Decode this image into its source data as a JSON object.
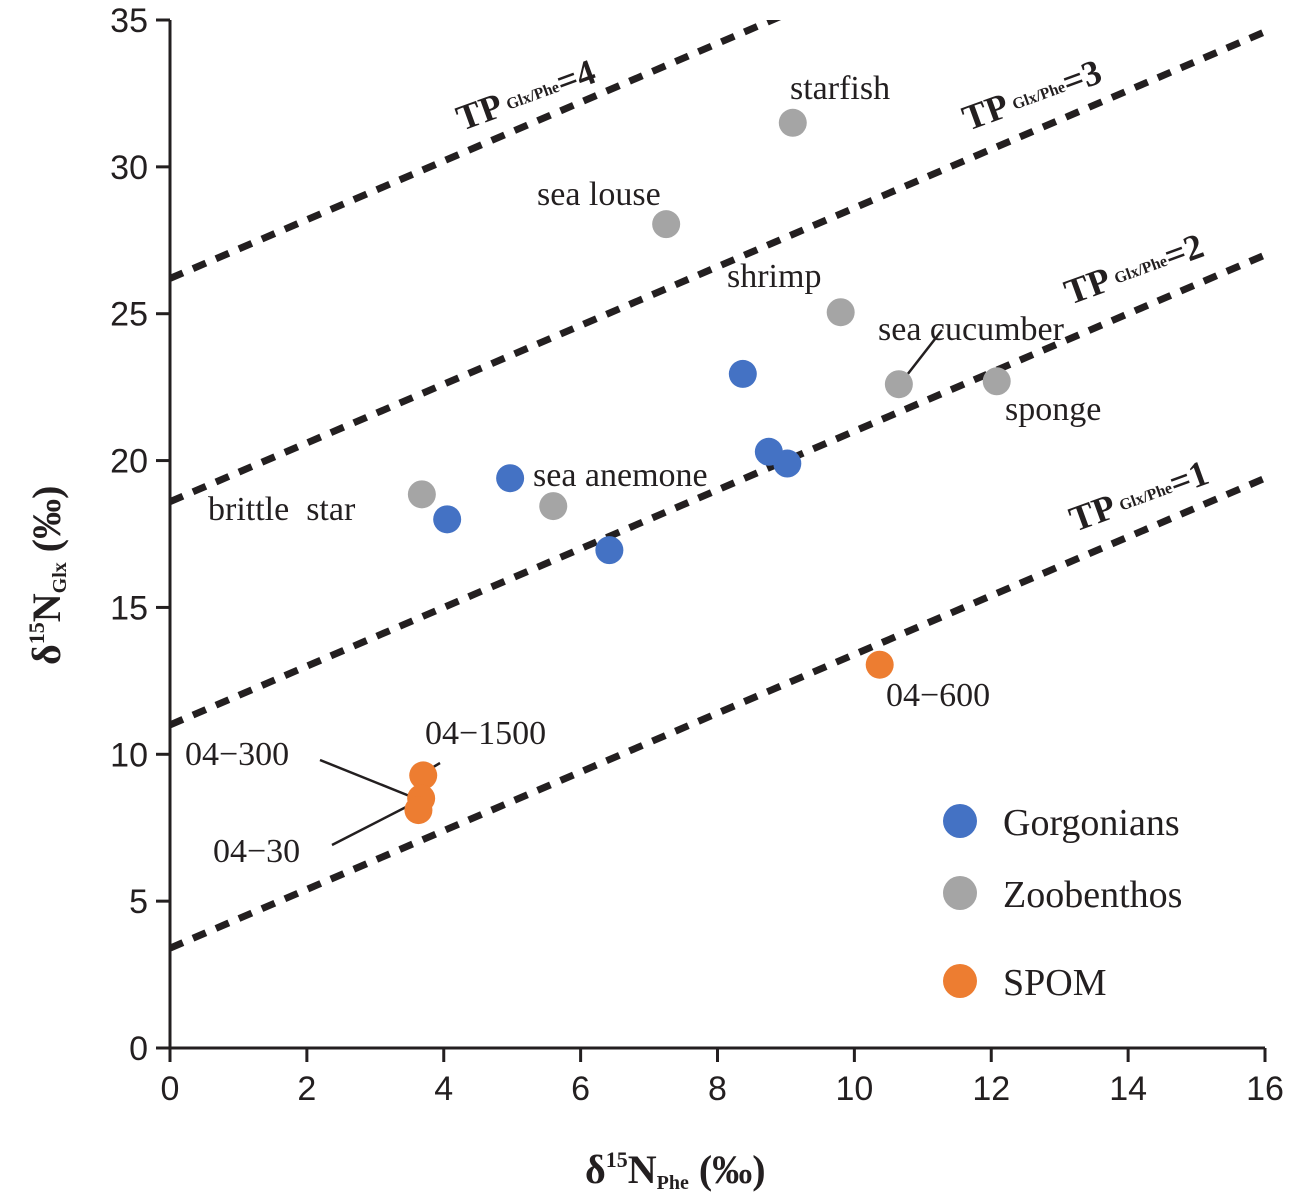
{
  "chart_data": {
    "type": "scatter",
    "xlabel": {
      "main": "δ",
      "sup": "15",
      "letter": "N",
      "sub": "Phe",
      "unit": "(‰)"
    },
    "ylabel": {
      "main": "δ",
      "sup": "15",
      "letter": "N",
      "sub": "Glx",
      "unit": "(‰)"
    },
    "xlim": [
      0,
      16
    ],
    "ylim": [
      0,
      35
    ],
    "xticks": [
      0,
      2,
      4,
      6,
      8,
      10,
      12,
      14,
      16
    ],
    "yticks": [
      0,
      5,
      10,
      15,
      20,
      25,
      30,
      35
    ],
    "colors": {
      "Gorgonians": "#4472c4",
      "Zoobenthos": "#a5a5a5",
      "SPOM": "#ed7d31",
      "axis": "#231f20"
    },
    "legend": [
      "Gorgonians",
      "Zoobenthos",
      "SPOM"
    ],
    "series": [
      {
        "name": "Gorgonians",
        "points": [
          {
            "x": 4.05,
            "y": 18.0
          },
          {
            "x": 4.97,
            "y": 19.4
          },
          {
            "x": 6.42,
            "y": 16.95
          },
          {
            "x": 8.37,
            "y": 22.95
          },
          {
            "x": 8.75,
            "y": 20.3
          },
          {
            "x": 9.02,
            "y": 19.9
          }
        ]
      },
      {
        "name": "Zoobenthos",
        "points": [
          {
            "x": 3.68,
            "y": 18.85,
            "label": "brittle  star"
          },
          {
            "x": 5.6,
            "y": 18.45,
            "label": "sea anemone"
          },
          {
            "x": 7.25,
            "y": 28.05,
            "label": "sea louse"
          },
          {
            "x": 9.1,
            "y": 31.5,
            "label": "starfish"
          },
          {
            "x": 9.8,
            "y": 25.05,
            "label": "shrimp"
          },
          {
            "x": 10.65,
            "y": 22.6,
            "label": "sea cucumber"
          },
          {
            "x": 12.08,
            "y": 22.7,
            "label": "sponge"
          }
        ]
      },
      {
        "name": "SPOM",
        "points": [
          {
            "x": 3.7,
            "y": 9.28,
            "label": "04−1500"
          },
          {
            "x": 3.67,
            "y": 8.5,
            "label": "04−300"
          },
          {
            "x": 3.63,
            "y": 8.1,
            "label": "04−30"
          },
          {
            "x": 10.37,
            "y": 13.05,
            "label": "04−600"
          }
        ]
      }
    ],
    "reference_lines": [
      {
        "tp": 1,
        "label": "TP",
        "sub": "Glx/Phe",
        "eq": "=1",
        "intercept": 3.4,
        "slope": 1.0
      },
      {
        "tp": 2,
        "label": "TP",
        "sub": "Glx/Phe",
        "eq": "=2",
        "intercept": 11.0,
        "slope": 1.0
      },
      {
        "tp": 3,
        "label": "TP",
        "sub": "Glx/Phe",
        "eq": "=3",
        "intercept": 18.6,
        "slope": 1.0
      },
      {
        "tp": 4,
        "label": "TP",
        "sub": "Glx/Phe",
        "eq": "=4",
        "intercept": 26.2,
        "slope": 1.0
      }
    ]
  }
}
